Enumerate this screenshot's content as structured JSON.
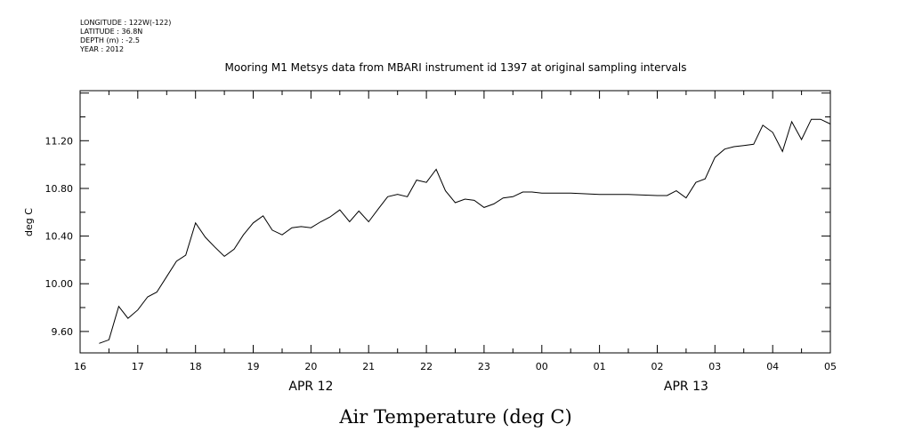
{
  "meta": {
    "longitude": "LONGITUDE : 122W(-122)",
    "latitude": "LATITUDE : 36.8N",
    "depth": "DEPTH (m) : -2.5",
    "year": "YEAR : 2012"
  },
  "chart_data": {
    "type": "line",
    "title": "Mooring M1 Metsys data from MBARI instrument id 1397 at original sampling intervals",
    "xlabel": "Air Temperature (deg C)",
    "ylabel": "deg C",
    "xlim": [
      16,
      29
    ],
    "ylim": [
      9.42,
      11.62
    ],
    "grid": false,
    "x_tick_labels": [
      "16",
      "17",
      "18",
      "19",
      "20",
      "21",
      "22",
      "23",
      "00",
      "01",
      "02",
      "03",
      "04",
      "05"
    ],
    "y_ticks": [
      9.6,
      10.0,
      10.4,
      10.8,
      11.2
    ],
    "y_tick_labels": [
      "9.60",
      "10.00",
      "10.40",
      "10.80",
      "11.20"
    ],
    "date_labels": [
      {
        "label": "APR 12",
        "x": 20
      },
      {
        "label": "APR 13",
        "x": 26.5
      }
    ],
    "series": [
      {
        "x": [
          16.33,
          16.5,
          16.67,
          16.83,
          17.0,
          17.17,
          17.33,
          17.5,
          17.67,
          17.83,
          18.0,
          18.17,
          18.33,
          18.5,
          18.67,
          18.83,
          19.0,
          19.17,
          19.33,
          19.5,
          19.67,
          19.83,
          20.0,
          20.17,
          20.33,
          20.5,
          20.67,
          20.83,
          21.0,
          21.17,
          21.33,
          21.5,
          21.67,
          21.83,
          22.0,
          22.17,
          22.33,
          22.5,
          22.67,
          22.83,
          23.0,
          23.17,
          23.33,
          23.5,
          23.67,
          23.83,
          24.0,
          24.5,
          25.0,
          25.5,
          26.0,
          26.17,
          26.33,
          26.5,
          26.67,
          26.83,
          27.0,
          27.17,
          27.33,
          27.5,
          27.67,
          27.83,
          28.0,
          28.17,
          28.33,
          28.5,
          28.67,
          28.83,
          29.0
        ],
        "y": [
          9.5,
          9.53,
          9.81,
          9.71,
          9.78,
          9.89,
          9.93,
          10.06,
          10.19,
          10.24,
          10.51,
          10.39,
          10.31,
          10.23,
          10.29,
          10.41,
          10.51,
          10.57,
          10.45,
          10.41,
          10.47,
          10.48,
          10.47,
          10.52,
          10.56,
          10.62,
          10.52,
          10.61,
          10.52,
          10.63,
          10.73,
          10.75,
          10.73,
          10.87,
          10.85,
          10.96,
          10.78,
          10.68,
          10.71,
          10.7,
          10.64,
          10.67,
          10.72,
          10.73,
          10.77,
          10.77,
          10.76,
          10.76,
          10.75,
          10.75,
          10.74,
          10.74,
          10.78,
          10.72,
          10.85,
          10.88,
          11.06,
          11.13,
          11.15,
          11.16,
          11.17,
          11.33,
          11.27,
          11.11,
          11.36,
          11.21,
          11.38,
          11.38,
          11.34
        ]
      }
    ]
  }
}
